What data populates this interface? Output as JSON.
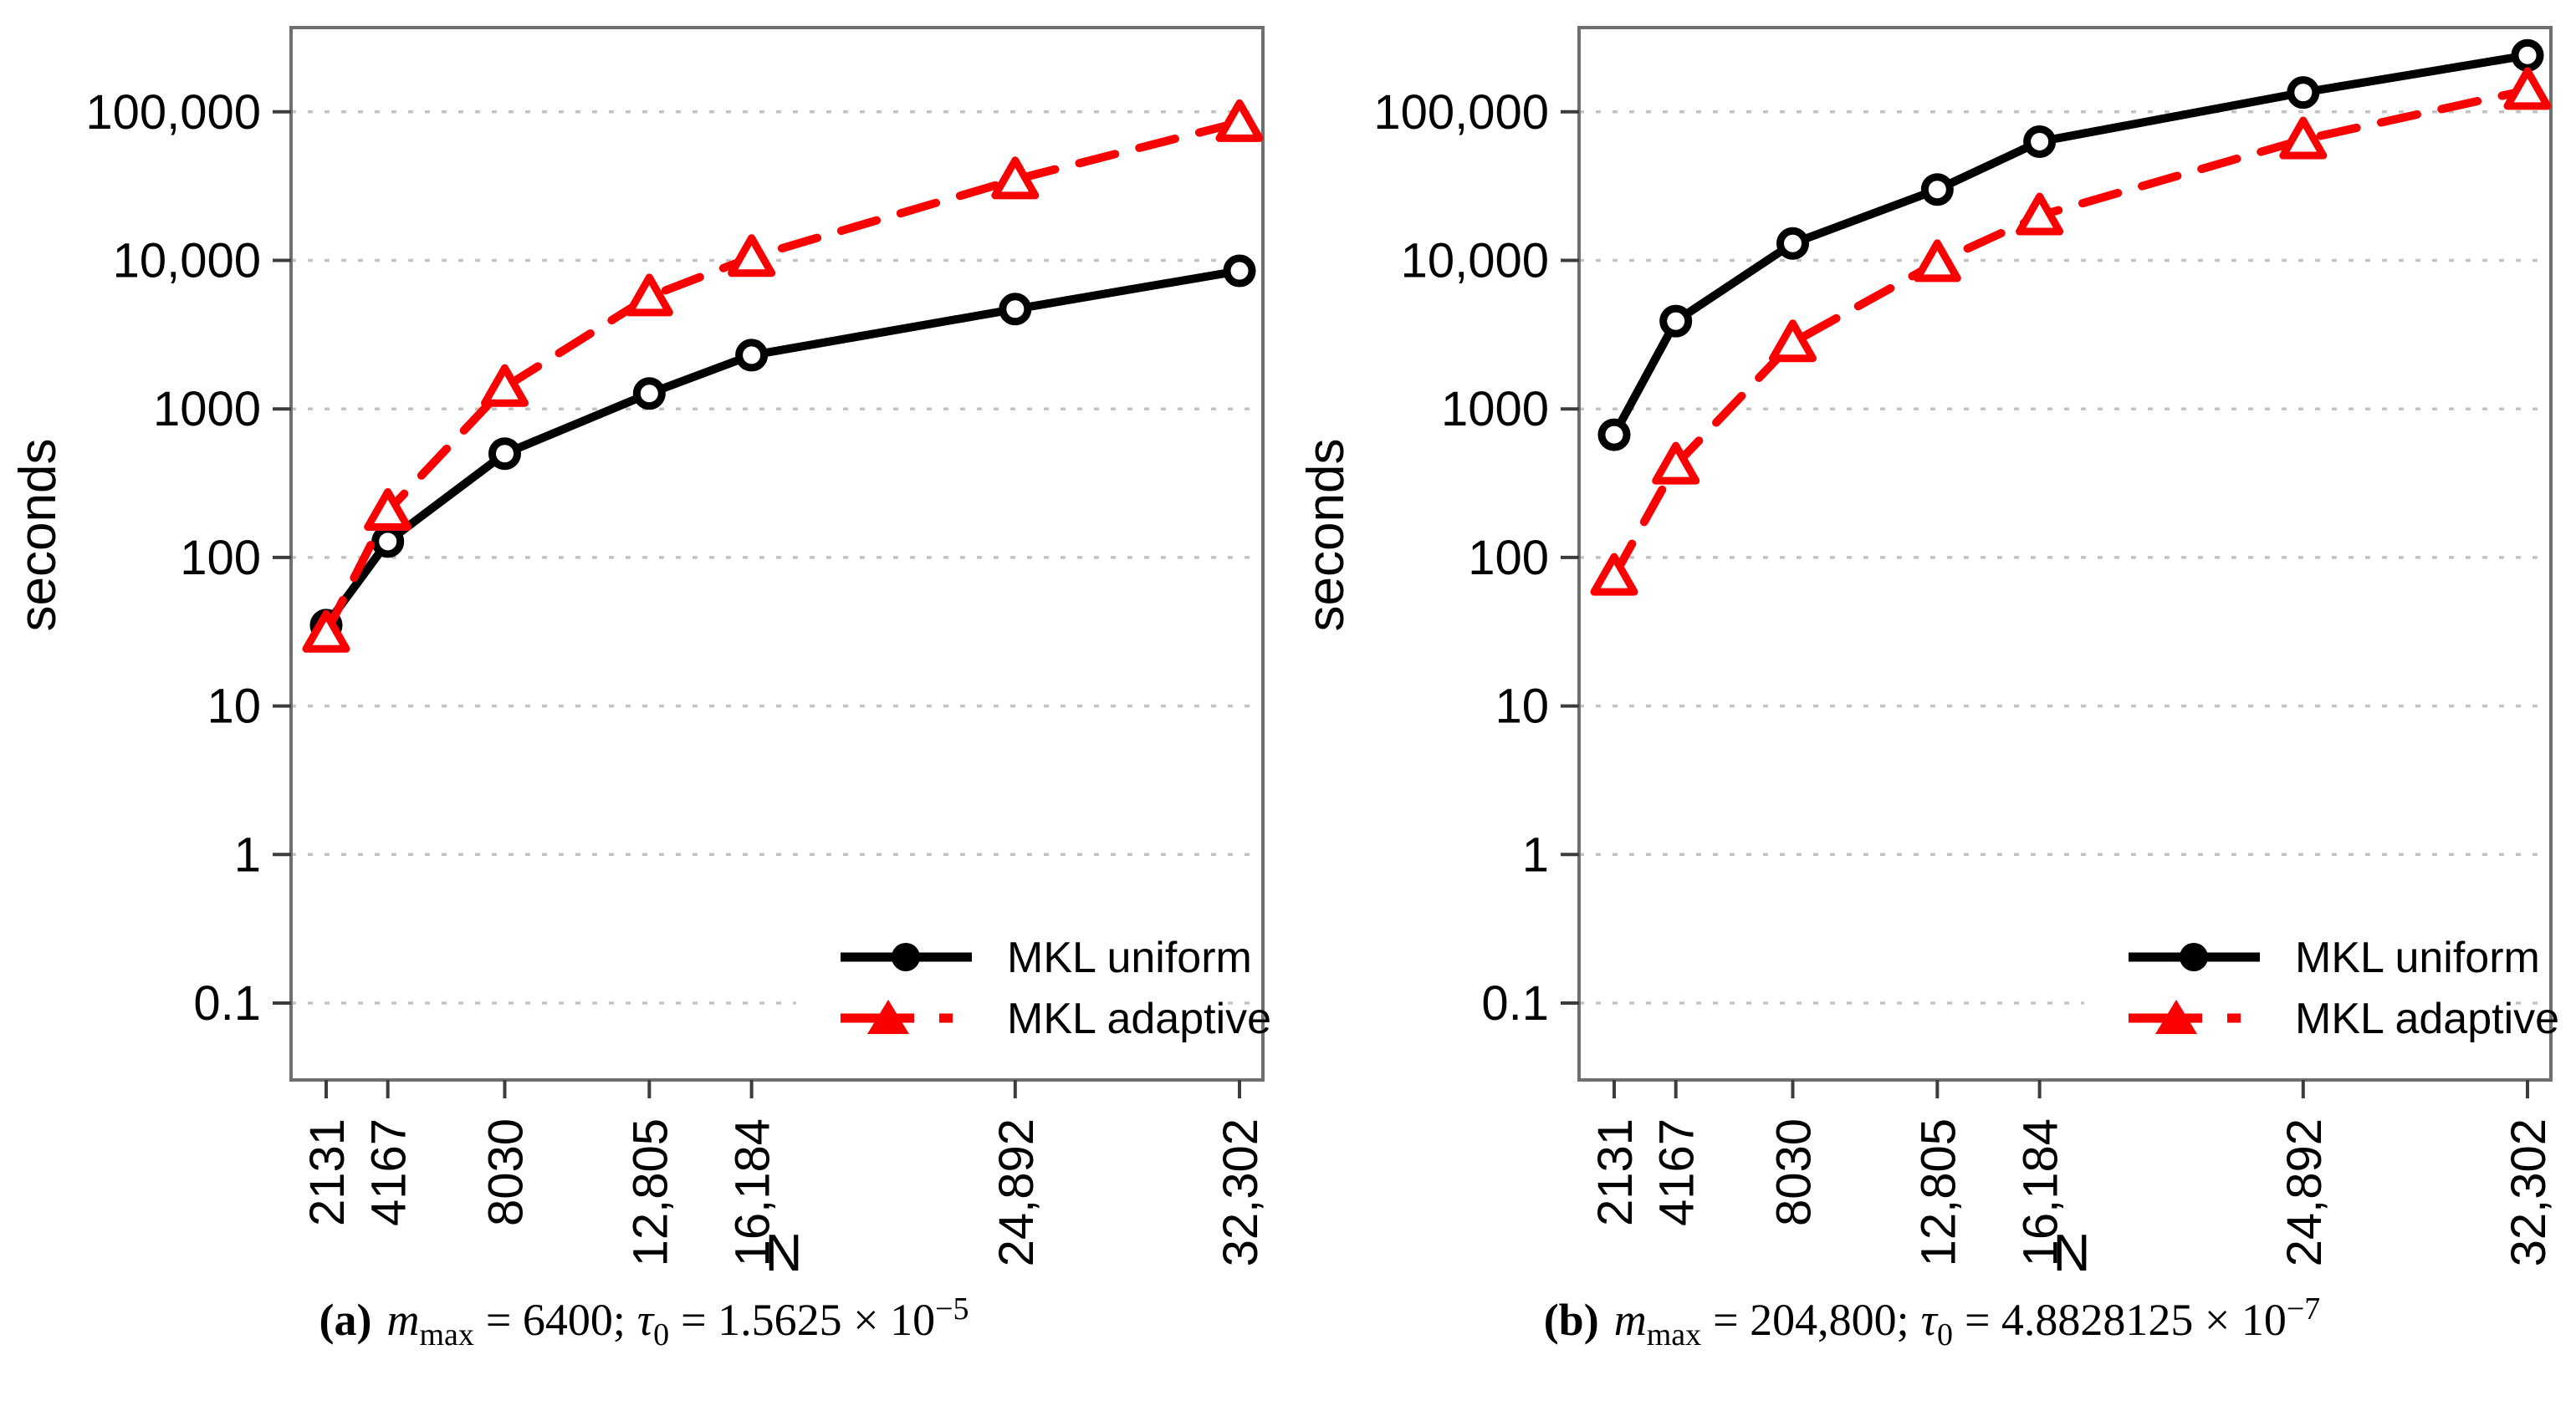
{
  "figure_colors": {
    "uniform": "#000000",
    "adaptive": "#fb0000",
    "axis_box": "#6f6f6f",
    "tick": "#3c3c3c",
    "gridline": "#c3c3c3",
    "background": "#ffffff"
  },
  "chart_data": [
    {
      "id": "a",
      "type": "line",
      "title": "",
      "xlabel": "N",
      "ylabel": "seconds",
      "x_scale": "linear",
      "y_scale": "log10",
      "grid": "horizontal-dotted",
      "legend_position": "bottom-right",
      "x": [
        2131,
        4167,
        8030,
        12805,
        16184,
        24892,
        32302
      ],
      "x_tick_labels": [
        "2131",
        "4167",
        "8030",
        "12,805",
        "16,184",
        "24,892",
        "32,302"
      ],
      "y_ticks": [
        100000,
        10000,
        1000,
        100,
        10,
        1,
        0.1
      ],
      "y_tick_labels": [
        "100,000",
        "10,000",
        "1000",
        "100",
        "10",
        "1",
        "0.1"
      ],
      "ylim_log10": [
        -1.52,
        5.57
      ],
      "series": [
        {
          "name": "MKL uniform",
          "color": "#000000",
          "line": "solid",
          "marker": "open-circle",
          "values": [
            35,
            128,
            500,
            1270,
            2300,
            4700,
            8500
          ]
        },
        {
          "name": "MKL adaptive",
          "color": "#fb0000",
          "line": "dashed",
          "marker": "open-triangle",
          "values": [
            31,
            205,
            1400,
            5700,
            10500,
            35000,
            85000
          ]
        }
      ],
      "caption": {
        "tag": "(a)",
        "m": "m",
        "m_sub": "max",
        "m_rhs": "= 6400;",
        "tau": "τ",
        "tau_sub": "0",
        "tau_rhs": "= 1.5625 × 10",
        "tau_exp": "−5"
      }
    },
    {
      "id": "b",
      "type": "line",
      "title": "",
      "xlabel": "N",
      "ylabel": "seconds",
      "x_scale": "linear",
      "y_scale": "log10",
      "grid": "horizontal-dotted",
      "legend_position": "bottom-right",
      "x": [
        2131,
        4167,
        8030,
        12805,
        16184,
        24892,
        32302
      ],
      "x_tick_labels": [
        "2131",
        "4167",
        "8030",
        "12,805",
        "16,184",
        "24,892",
        "32,302"
      ],
      "y_ticks": [
        100000,
        10000,
        1000,
        100,
        10,
        1,
        0.1
      ],
      "y_tick_labels": [
        "100,000",
        "10,000",
        "1000",
        "100",
        "10",
        "1",
        "0.1"
      ],
      "ylim_log10": [
        -1.52,
        5.57
      ],
      "series": [
        {
          "name": "MKL uniform",
          "color": "#000000",
          "line": "solid",
          "marker": "open-circle",
          "values": [
            670,
            3900,
            13000,
            30000,
            63000,
            135000,
            240000
          ]
        },
        {
          "name": "MKL adaptive",
          "color": "#fb0000",
          "line": "dashed",
          "marker": "open-triangle",
          "values": [
            75,
            420,
            2800,
            9700,
            20000,
            65000,
            140000
          ]
        }
      ],
      "caption": {
        "tag": "(b)",
        "m": "m",
        "m_sub": "max",
        "m_rhs": "= 204,800;",
        "tau": "τ",
        "tau_sub": "0",
        "tau_rhs": "= 4.8828125 × 10",
        "tau_exp": "−7"
      }
    }
  ]
}
